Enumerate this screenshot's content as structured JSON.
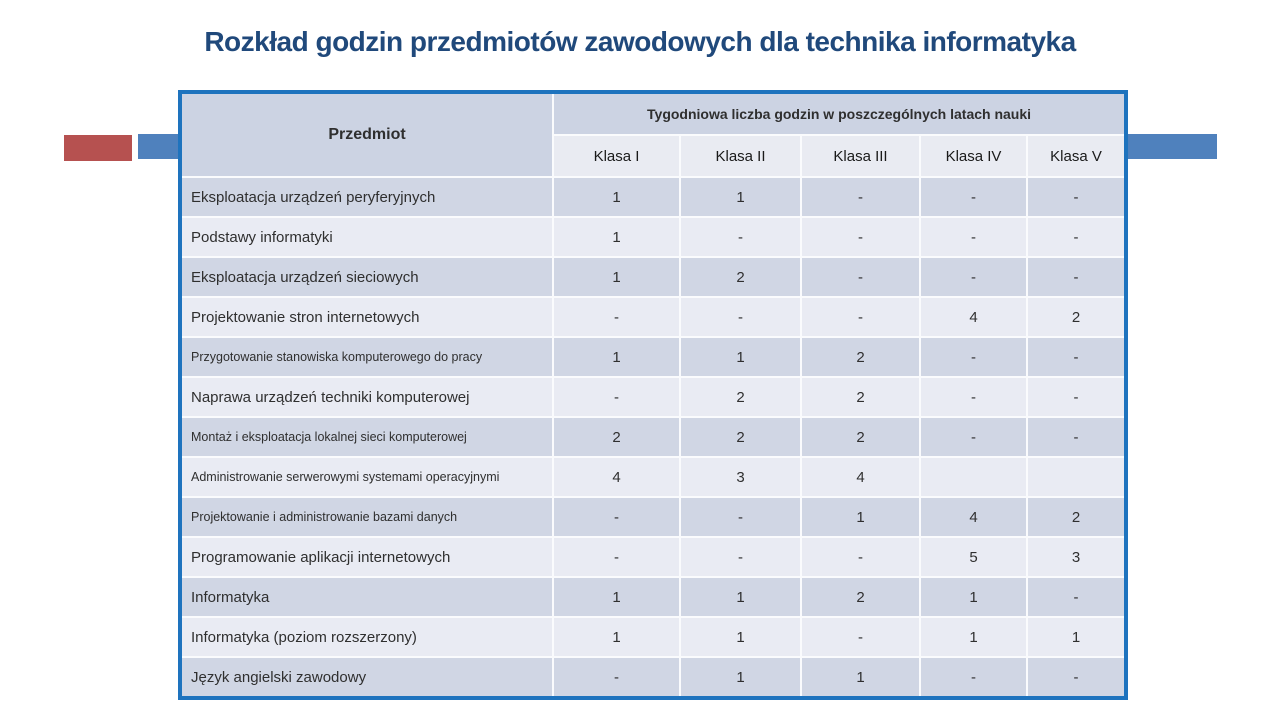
{
  "title": "Rozkład godzin przedmiotów zawodowych dla technika informatyka",
  "table": {
    "subject_header": "Przedmiot",
    "group_header": "Tygodniowa liczba godzin w poszczególnych latach nauki",
    "class_headers": [
      "Klasa I",
      "Klasa II",
      "Klasa III",
      "Klasa IV",
      "Klasa V"
    ],
    "rows": [
      {
        "subject": "Eksploatacja urządzeń peryferyjnych",
        "compact": false,
        "values": [
          "1",
          "1",
          "-",
          "-",
          "-"
        ]
      },
      {
        "subject": "Podstawy informatyki",
        "compact": false,
        "values": [
          "1",
          "-",
          "-",
          "-",
          "-"
        ]
      },
      {
        "subject": "Eksploatacja urządzeń sieciowych",
        "compact": false,
        "values": [
          "1",
          "2",
          "-",
          "-",
          "-"
        ]
      },
      {
        "subject": "Projektowanie stron internetowych",
        "compact": false,
        "values": [
          "-",
          "-",
          "-",
          "4",
          "2"
        ]
      },
      {
        "subject": "Przygotowanie stanowiska komputerowego do pracy",
        "compact": true,
        "values": [
          "1",
          "1",
          "2",
          "-",
          "-"
        ]
      },
      {
        "subject": "Naprawa urządzeń techniki komputerowej",
        "compact": false,
        "values": [
          "-",
          "2",
          "2",
          "-",
          "-"
        ]
      },
      {
        "subject": "Montaż i eksploatacja lokalnej sieci komputerowej",
        "compact": true,
        "values": [
          "2",
          "2",
          "2",
          "-",
          "-"
        ]
      },
      {
        "subject": "Administrowanie serwerowymi systemami operacyjnymi",
        "compact": true,
        "values": [
          "4",
          "3",
          "4",
          "",
          ""
        ]
      },
      {
        "subject": "Projektowanie i administrowanie bazami danych",
        "compact": true,
        "values": [
          "-",
          "-",
          "1",
          "4",
          "2"
        ]
      },
      {
        "subject": "Programowanie aplikacji internetowych",
        "compact": false,
        "values": [
          "-",
          "-",
          "-",
          "5",
          "3"
        ]
      },
      {
        "subject": "Informatyka",
        "compact": false,
        "values": [
          "1",
          "1",
          "2",
          "1",
          "-"
        ]
      },
      {
        "subject": "Informatyka (poziom rozszerzony)",
        "compact": false,
        "values": [
          "1",
          "1",
          "-",
          "1",
          "1"
        ]
      },
      {
        "subject": "Język angielski zawodowy",
        "compact": false,
        "values": [
          "-",
          "1",
          "1",
          "-",
          "-"
        ]
      }
    ]
  },
  "colors": {
    "title": "#20497b",
    "table_border": "#1e73be",
    "header_dark_bg": "#ccd3e3",
    "header_light_bg": "#e9ebf2",
    "row_odd_bg": "#d0d6e4",
    "row_even_bg": "#e9ebf3",
    "accent_red": "#b65150",
    "accent_blue": "#4f81bd"
  }
}
